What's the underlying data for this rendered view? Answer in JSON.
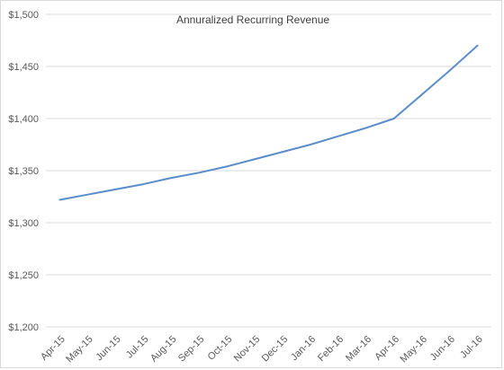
{
  "chart_data": {
    "type": "line",
    "title": "Annuralized Recurring Revenue",
    "xlabel": "",
    "ylabel": "",
    "categories": [
      "Apr-15",
      "May-15",
      "Jun-15",
      "Jul-15",
      "Aug-15",
      "Sep-15",
      "Oct-15",
      "Nov-15",
      "Dec-15",
      "Jan-16",
      "Feb-16",
      "Mar-16",
      "Apr-16",
      "May-16",
      "Jun-16",
      "Jul-16"
    ],
    "series": [
      {
        "values": [
          1322,
          1327,
          1332,
          1337,
          1343,
          1348,
          1354,
          1361,
          1368,
          1375,
          1383,
          1391,
          1400,
          1423,
          1446,
          1470
        ],
        "color": "#5b8cc9"
      }
    ],
    "ylim": [
      1200,
      1500
    ],
    "yticks": [
      1200,
      1250,
      1300,
      1350,
      1400,
      1450,
      1500
    ],
    "ytick_labels": [
      "$1,200",
      "$1,250",
      "$1,300",
      "$1,350",
      "$1,400",
      "$1,450",
      "$1,500"
    ],
    "grid": true,
    "legend": "none"
  }
}
